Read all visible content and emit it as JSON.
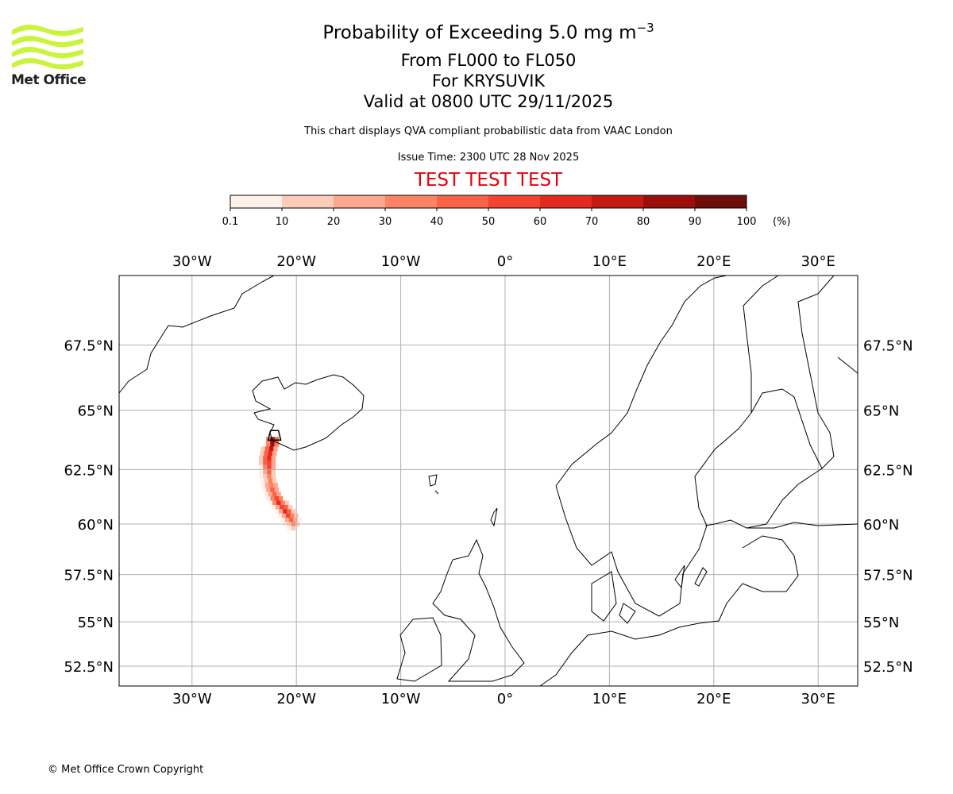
{
  "header": {
    "title": "Probability of Exceeding 5.0 mg m",
    "title_sup": "−3",
    "levels": "From FL000 to FL050",
    "location": "For KRYSUVIK",
    "valid": "Valid at 0800 UTC 29/11/2025",
    "subtitle": "This chart displays QVA compliant probabilistic data from VAAC London",
    "issue_time": "Issue Time: 2300 UTC 28 Nov 2025",
    "test_banner": "TEST TEST TEST"
  },
  "logo": {
    "text": "Met Office",
    "color": "#c8f53c"
  },
  "footer": {
    "copyright": "© Met Office Crown Copyright"
  },
  "colorbar": {
    "ticks": [
      "0.1",
      "10",
      "20",
      "30",
      "40",
      "50",
      "60",
      "70",
      "80",
      "90",
      "100"
    ],
    "unit": "(%)",
    "colors": [
      "#fff0e9",
      "#fdcbb9",
      "#fca78e",
      "#fc8465",
      "#fb6346",
      "#f6432f",
      "#e42a1f",
      "#c31a14",
      "#9c0e0c",
      "#6e0e0a"
    ]
  },
  "chart_data": {
    "type": "heatmap",
    "title": "Probability of Exceeding 5.0 mg m-3",
    "projection": "mercator",
    "lon_range": [
      -37,
      33.8
    ],
    "lat_range": [
      51.5,
      70.5
    ],
    "lon_ticks": [
      {
        "v": -30,
        "label": "30°W"
      },
      {
        "v": -20,
        "label": "20°W"
      },
      {
        "v": -10,
        "label": "10°W"
      },
      {
        "v": 0,
        "label": "0°"
      },
      {
        "v": 10,
        "label": "10°E"
      },
      {
        "v": 20,
        "label": "20°E"
      },
      {
        "v": 30,
        "label": "30°E"
      }
    ],
    "lat_ticks": [
      {
        "v": 67.5,
        "label": "67.5°N"
      },
      {
        "v": 65,
        "label": "65°N"
      },
      {
        "v": 62.5,
        "label": "62.5°N"
      },
      {
        "v": 60,
        "label": "60°N"
      },
      {
        "v": 57.5,
        "label": "57.5°N"
      },
      {
        "v": 55,
        "label": "55°N"
      },
      {
        "v": 52.5,
        "label": "52.5°N"
      }
    ],
    "grid": true,
    "source": {
      "name": "KRYSUVIK",
      "lon": -22.1,
      "lat": 63.9
    },
    "cell_size_deg": [
      0.4,
      0.2
    ],
    "rows": [
      {
        "lat": 63.8,
        "lon": [
          -22.7,
          -22.3,
          -21.9
        ],
        "prob": [
          30,
          85,
          40
        ]
      },
      {
        "lat": 63.6,
        "lon": [
          -22.7,
          -22.3,
          -21.9
        ],
        "prob": [
          35,
          80,
          30
        ]
      },
      {
        "lat": 63.4,
        "lon": [
          -23.2,
          -22.8,
          -22.4,
          -22.0
        ],
        "prob": [
          10,
          40,
          70,
          25
        ]
      },
      {
        "lat": 63.2,
        "lon": [
          -23.3,
          -22.9,
          -22.5,
          -22.1
        ],
        "prob": [
          10,
          45,
          65,
          25
        ]
      },
      {
        "lat": 63.0,
        "lon": [
          -23.4,
          -23.0,
          -22.6,
          -22.2
        ],
        "prob": [
          12,
          45,
          60,
          25
        ]
      },
      {
        "lat": 62.8,
        "lon": [
          -23.4,
          -23.0,
          -22.6,
          -22.2
        ],
        "prob": [
          12,
          40,
          55,
          20
        ]
      },
      {
        "lat": 62.6,
        "lon": [
          -23.4,
          -23.0,
          -22.6,
          -22.2
        ],
        "prob": [
          8,
          30,
          50,
          20
        ]
      },
      {
        "lat": 62.4,
        "lon": [
          -23.4,
          -23.0,
          -22.6,
          -22.2
        ],
        "prob": [
          5,
          20,
          40,
          15
        ]
      },
      {
        "lat": 62.2,
        "lon": [
          -23.4,
          -23.0,
          -22.6,
          -22.2
        ],
        "prob": [
          5,
          15,
          35,
          15
        ]
      },
      {
        "lat": 62.0,
        "lon": [
          -23.3,
          -22.9,
          -22.5,
          -22.1
        ],
        "prob": [
          5,
          15,
          30,
          15
        ]
      },
      {
        "lat": 61.8,
        "lon": [
          -23.2,
          -22.8,
          -22.4,
          -22.0
        ],
        "prob": [
          5,
          20,
          35,
          20
        ]
      },
      {
        "lat": 61.6,
        "lon": [
          -23.1,
          -22.7,
          -22.3,
          -21.9
        ],
        "prob": [
          5,
          20,
          40,
          25
        ]
      },
      {
        "lat": 61.4,
        "lon": [
          -22.9,
          -22.5,
          -22.1,
          -21.7
        ],
        "prob": [
          8,
          25,
          45,
          25
        ]
      },
      {
        "lat": 61.2,
        "lon": [
          -22.7,
          -22.3,
          -21.9,
          -21.5
        ],
        "prob": [
          8,
          30,
          55,
          30
        ]
      },
      {
        "lat": 61.0,
        "lon": [
          -22.5,
          -22.1,
          -21.7,
          -21.3,
          -20.9
        ],
        "prob": [
          8,
          30,
          60,
          35,
          10
        ]
      },
      {
        "lat": 60.8,
        "lon": [
          -22.2,
          -21.8,
          -21.4,
          -21.0,
          -20.6
        ],
        "prob": [
          8,
          25,
          55,
          40,
          12
        ]
      },
      {
        "lat": 60.6,
        "lon": [
          -21.9,
          -21.5,
          -21.1,
          -20.7,
          -20.3
        ],
        "prob": [
          8,
          25,
          60,
          45,
          15
        ]
      },
      {
        "lat": 60.4,
        "lon": [
          -21.6,
          -21.2,
          -20.8,
          -20.4,
          -20.0
        ],
        "prob": [
          8,
          25,
          55,
          35,
          12
        ]
      },
      {
        "lat": 60.2,
        "lon": [
          -21.3,
          -20.9,
          -20.5,
          -20.1,
          -19.7
        ],
        "prob": [
          5,
          20,
          45,
          25,
          8
        ]
      },
      {
        "lat": 60.0,
        "lon": [
          -21.1,
          -20.7,
          -20.3,
          -19.9
        ],
        "prob": [
          5,
          15,
          30,
          10
        ]
      },
      {
        "lat": 59.8,
        "lon": [
          -20.7,
          -20.3
        ],
        "prob": [
          5,
          15
        ]
      }
    ]
  }
}
